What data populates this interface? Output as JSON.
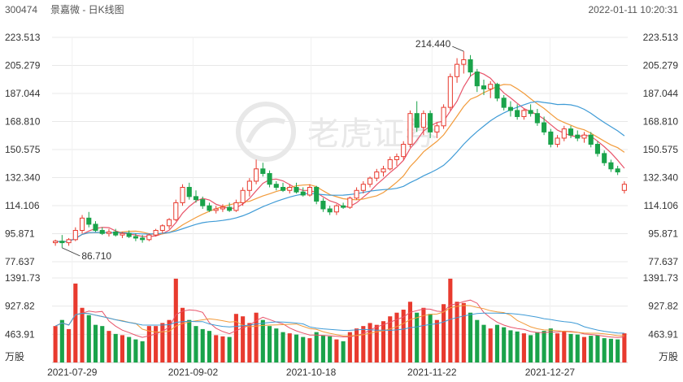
{
  "header": {
    "code": "300474",
    "title": "景嘉微 - 日K线图",
    "datetime": "2022-01-11 10:20:31"
  },
  "watermark": {
    "text": "老虎证券"
  },
  "colors": {
    "up": "#e83a2e",
    "down": "#1aa34a",
    "ma5": "#e8546a",
    "ma10": "#f29b3b",
    "ma20": "#3f9bd6",
    "grid": "#e8e8e8"
  },
  "chart_data": {
    "type": "candlestick",
    "ticker": "300474",
    "name": "景嘉微",
    "period": "daily",
    "price_axis": {
      "ticks": [
        "223.513",
        "205.279",
        "187.044",
        "168.810",
        "150.575",
        "132.340",
        "114.106",
        "95.871",
        "77.637"
      ],
      "ylim": [
        77.637,
        223.513
      ]
    },
    "volume_axis": {
      "ticks": [
        "1391.73",
        "927.82",
        "463.91"
      ],
      "ylim": [
        0,
        1391.73
      ],
      "unit": "万股"
    },
    "x_ticks": [
      "2021-07-29",
      "2021-09-02",
      "2021-10-18",
      "2021-11-22",
      "2021-12-27"
    ],
    "annotations": {
      "high": "214.440",
      "low": "86.710"
    },
    "series_names": [
      "MA5",
      "MA10",
      "MA20"
    ],
    "candles": [
      {
        "o": 90,
        "h": 92,
        "l": 88,
        "c": 91,
        "v": 600
      },
      {
        "o": 91,
        "h": 95,
        "l": 86.71,
        "c": 90,
        "v": 700
      },
      {
        "o": 90,
        "h": 93,
        "l": 88,
        "c": 92,
        "v": 550
      },
      {
        "o": 92,
        "h": 100,
        "l": 91,
        "c": 98,
        "v": 1300
      },
      {
        "o": 98,
        "h": 108,
        "l": 96,
        "c": 106,
        "v": 900
      },
      {
        "o": 106,
        "h": 110,
        "l": 100,
        "c": 102,
        "v": 780
      },
      {
        "o": 102,
        "h": 104,
        "l": 97,
        "c": 98,
        "v": 620
      },
      {
        "o": 98,
        "h": 100,
        "l": 95,
        "c": 96,
        "v": 600
      },
      {
        "o": 96,
        "h": 99,
        "l": 94,
        "c": 97,
        "v": 520
      },
      {
        "o": 97,
        "h": 99,
        "l": 94,
        "c": 95,
        "v": 470
      },
      {
        "o": 95,
        "h": 97,
        "l": 93,
        "c": 96,
        "v": 450
      },
      {
        "o": 96,
        "h": 98,
        "l": 93,
        "c": 94,
        "v": 420
      },
      {
        "o": 94,
        "h": 96,
        "l": 91,
        "c": 93,
        "v": 380
      },
      {
        "o": 93,
        "h": 95,
        "l": 90,
        "c": 92,
        "v": 350
      },
      {
        "o": 92,
        "h": 96,
        "l": 91,
        "c": 95,
        "v": 600
      },
      {
        "o": 95,
        "h": 99,
        "l": 94,
        "c": 98,
        "v": 600
      },
      {
        "o": 98,
        "h": 102,
        "l": 96,
        "c": 101,
        "v": 650
      },
      {
        "o": 101,
        "h": 106,
        "l": 99,
        "c": 105,
        "v": 700
      },
      {
        "o": 105,
        "h": 118,
        "l": 104,
        "c": 116,
        "v": 1380
      },
      {
        "o": 116,
        "h": 128,
        "l": 114,
        "c": 126,
        "v": 900
      },
      {
        "o": 126,
        "h": 129,
        "l": 118,
        "c": 120,
        "v": 700
      },
      {
        "o": 120,
        "h": 124,
        "l": 116,
        "c": 118,
        "v": 600
      },
      {
        "o": 118,
        "h": 120,
        "l": 112,
        "c": 114,
        "v": 550
      },
      {
        "o": 114,
        "h": 116,
        "l": 110,
        "c": 111,
        "v": 520
      },
      {
        "o": 111,
        "h": 114,
        "l": 109,
        "c": 112,
        "v": 450
      },
      {
        "o": 112,
        "h": 115,
        "l": 110,
        "c": 113,
        "v": 430
      },
      {
        "o": 113,
        "h": 116,
        "l": 110,
        "c": 111,
        "v": 420
      },
      {
        "o": 111,
        "h": 118,
        "l": 110,
        "c": 116,
        "v": 800
      },
      {
        "o": 116,
        "h": 126,
        "l": 114,
        "c": 124,
        "v": 760
      },
      {
        "o": 124,
        "h": 132,
        "l": 120,
        "c": 130,
        "v": 650
      },
      {
        "o": 130,
        "h": 144,
        "l": 128,
        "c": 138,
        "v": 820
      },
      {
        "o": 138,
        "h": 142,
        "l": 133,
        "c": 135,
        "v": 700
      },
      {
        "o": 135,
        "h": 137,
        "l": 126,
        "c": 128,
        "v": 600
      },
      {
        "o": 128,
        "h": 130,
        "l": 124,
        "c": 126,
        "v": 560
      },
      {
        "o": 126,
        "h": 129,
        "l": 123,
        "c": 124,
        "v": 500
      },
      {
        "o": 124,
        "h": 128,
        "l": 122,
        "c": 126,
        "v": 480
      },
      {
        "o": 126,
        "h": 129,
        "l": 122,
        "c": 123,
        "v": 460
      },
      {
        "o": 123,
        "h": 126,
        "l": 120,
        "c": 121,
        "v": 420
      },
      {
        "o": 121,
        "h": 128,
        "l": 120,
        "c": 126,
        "v": 400
      },
      {
        "o": 126,
        "h": 127,
        "l": 115,
        "c": 117,
        "v": 500
      },
      {
        "o": 117,
        "h": 119,
        "l": 110,
        "c": 112,
        "v": 450
      },
      {
        "o": 112,
        "h": 114,
        "l": 108,
        "c": 110,
        "v": 430
      },
      {
        "o": 110,
        "h": 115,
        "l": 108,
        "c": 114,
        "v": 380
      },
      {
        "o": 114,
        "h": 116,
        "l": 112,
        "c": 113,
        "v": 350
      },
      {
        "o": 113,
        "h": 120,
        "l": 112,
        "c": 119,
        "v": 500
      },
      {
        "o": 119,
        "h": 126,
        "l": 118,
        "c": 124,
        "v": 560
      },
      {
        "o": 124,
        "h": 130,
        "l": 122,
        "c": 128,
        "v": 600
      },
      {
        "o": 128,
        "h": 133,
        "l": 126,
        "c": 132,
        "v": 650
      },
      {
        "o": 132,
        "h": 138,
        "l": 130,
        "c": 136,
        "v": 620
      },
      {
        "o": 136,
        "h": 140,
        "l": 133,
        "c": 138,
        "v": 680
      },
      {
        "o": 138,
        "h": 146,
        "l": 137,
        "c": 144,
        "v": 760
      },
      {
        "o": 144,
        "h": 148,
        "l": 140,
        "c": 146,
        "v": 820
      },
      {
        "o": 146,
        "h": 156,
        "l": 144,
        "c": 154,
        "v": 870
      },
      {
        "o": 154,
        "h": 176,
        "l": 152,
        "c": 174,
        "v": 1000
      },
      {
        "o": 174,
        "h": 182,
        "l": 162,
        "c": 165,
        "v": 820
      },
      {
        "o": 165,
        "h": 176,
        "l": 160,
        "c": 174,
        "v": 900
      },
      {
        "o": 174,
        "h": 176,
        "l": 158,
        "c": 162,
        "v": 800
      },
      {
        "o": 162,
        "h": 168,
        "l": 158,
        "c": 166,
        "v": 700
      },
      {
        "o": 166,
        "h": 180,
        "l": 164,
        "c": 178,
        "v": 960
      },
      {
        "o": 178,
        "h": 200,
        "l": 176,
        "c": 198,
        "v": 1380
      },
      {
        "o": 198,
        "h": 210,
        "l": 194,
        "c": 206,
        "v": 1000
      },
      {
        "o": 206,
        "h": 214.44,
        "l": 200,
        "c": 209,
        "v": 980
      },
      {
        "o": 209,
        "h": 212,
        "l": 198,
        "c": 201,
        "v": 820
      },
      {
        "o": 201,
        "h": 203,
        "l": 188,
        "c": 192,
        "v": 700
      },
      {
        "o": 192,
        "h": 196,
        "l": 186,
        "c": 190,
        "v": 620
      },
      {
        "o": 190,
        "h": 195,
        "l": 184,
        "c": 193,
        "v": 560
      },
      {
        "o": 193,
        "h": 194,
        "l": 182,
        "c": 184,
        "v": 620
      },
      {
        "o": 184,
        "h": 186,
        "l": 176,
        "c": 178,
        "v": 580
      },
      {
        "o": 178,
        "h": 182,
        "l": 172,
        "c": 176,
        "v": 530
      },
      {
        "o": 176,
        "h": 180,
        "l": 170,
        "c": 172,
        "v": 510
      },
      {
        "o": 172,
        "h": 177,
        "l": 170,
        "c": 176,
        "v": 480
      },
      {
        "o": 176,
        "h": 180,
        "l": 172,
        "c": 174,
        "v": 450
      },
      {
        "o": 174,
        "h": 177,
        "l": 166,
        "c": 168,
        "v": 500
      },
      {
        "o": 168,
        "h": 172,
        "l": 160,
        "c": 162,
        "v": 520
      },
      {
        "o": 162,
        "h": 164,
        "l": 152,
        "c": 154,
        "v": 560
      },
      {
        "o": 154,
        "h": 160,
        "l": 152,
        "c": 158,
        "v": 480
      },
      {
        "o": 158,
        "h": 166,
        "l": 156,
        "c": 164,
        "v": 520
      },
      {
        "o": 164,
        "h": 166,
        "l": 158,
        "c": 160,
        "v": 470
      },
      {
        "o": 160,
        "h": 163,
        "l": 156,
        "c": 158,
        "v": 460
      },
      {
        "o": 158,
        "h": 162,
        "l": 155,
        "c": 160,
        "v": 420
      },
      {
        "o": 160,
        "h": 162,
        "l": 152,
        "c": 154,
        "v": 440
      },
      {
        "o": 154,
        "h": 156,
        "l": 146,
        "c": 148,
        "v": 450
      },
      {
        "o": 148,
        "h": 150,
        "l": 140,
        "c": 142,
        "v": 400
      },
      {
        "o": 142,
        "h": 144,
        "l": 136,
        "c": 138,
        "v": 390
      },
      {
        "o": 138,
        "h": 140,
        "l": 134,
        "c": 136,
        "v": 380
      },
      {
        "o": 124,
        "h": 130,
        "l": 122,
        "c": 128,
        "v": 480
      }
    ]
  }
}
